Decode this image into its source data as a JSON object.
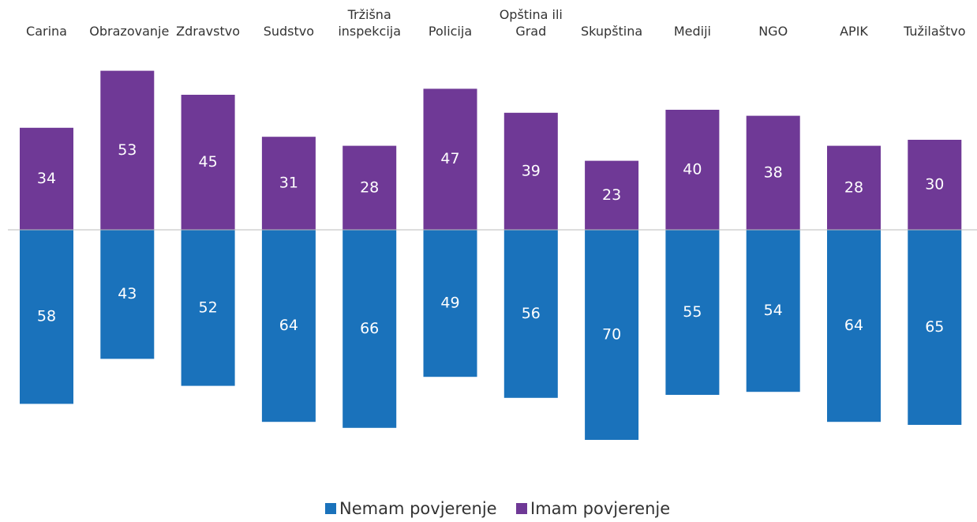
{
  "chart_data": {
    "type": "diverging-bar",
    "categories": [
      "Carina",
      "Obrazovanje",
      "Zdravstvo",
      "Sudstvo",
      "Tržišna inspekcija",
      "Policija",
      "Opština ili Grad",
      "Skupština",
      "Mediji",
      "NGO",
      "APIK",
      "Tužilaštvo"
    ],
    "series": [
      {
        "name": "Nemam povjerenje",
        "color": "#1a72bb",
        "values": [
          58,
          43,
          52,
          64,
          66,
          49,
          56,
          70,
          55,
          54,
          64,
          65
        ]
      },
      {
        "name": "Imam povjerenje",
        "color": "#6f3996",
        "values": [
          34,
          53,
          45,
          31,
          28,
          47,
          39,
          23,
          40,
          38,
          28,
          30
        ]
      }
    ],
    "legend": "bottom"
  }
}
